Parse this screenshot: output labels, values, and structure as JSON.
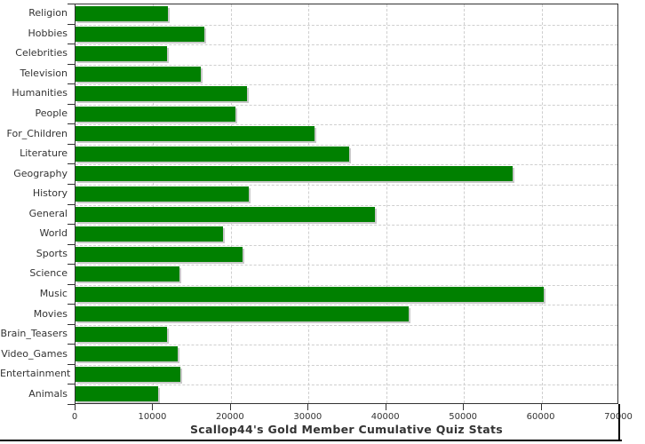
{
  "chart_data": {
    "type": "bar",
    "orientation": "horizontal",
    "title": "Scallop44's Gold Member Cumulative Quiz Stats",
    "categories": [
      "Religion",
      "Hobbies",
      "Celebrities",
      "Television",
      "Humanities",
      "People",
      "For_Children",
      "Literature",
      "Geography",
      "History",
      "General",
      "World",
      "Sports",
      "Science",
      "Music",
      "Movies",
      "Brain_Teasers",
      "Video_Games",
      "Entertainment",
      "Animals"
    ],
    "values": [
      11900,
      16600,
      11800,
      16100,
      22100,
      20600,
      30800,
      35200,
      56300,
      22300,
      38500,
      19000,
      21500,
      13400,
      60300,
      42900,
      11800,
      13200,
      13500,
      10600
    ],
    "xlabel": "",
    "ylabel": "",
    "xlim": [
      0,
      70000
    ],
    "x_tick_labels": [
      "0",
      "10000",
      "20000",
      "30000",
      "40000",
      "50000",
      "60000",
      "70000"
    ],
    "x_tick_values": [
      0,
      10000,
      20000,
      30000,
      40000,
      50000,
      60000,
      70000
    ],
    "grid": "dashed, vertical at every 10000 and horizontal at category boundaries",
    "legend": "none",
    "colors": {
      "bar": "#008000",
      "bar_shadow": "#c9c9c9",
      "grid": "#cfcfcf",
      "axis": "#333333",
      "text": "#333333",
      "background": "#ffffff",
      "bottom_border": "#000000"
    }
  }
}
